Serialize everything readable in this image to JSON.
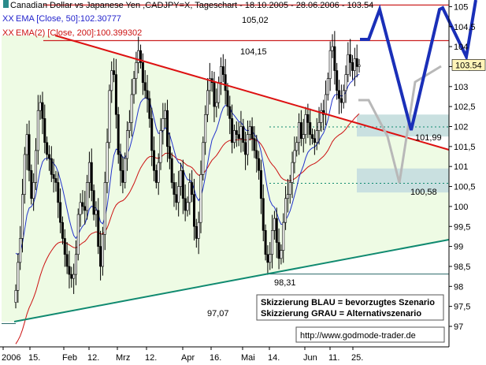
{
  "header": {
    "prefix": "XX",
    "title": "Canadian Dollar vs Japanese Yen ,CADJPY=X, Tageschart - 18.10.2005 - 28.06.2006 - 103.54"
  },
  "legend": [
    {
      "prefix": "XX",
      "label": "EMA [Close, 50]:102.30777",
      "color": "#2222cc"
    },
    {
      "prefix": "XX",
      "label": "EMA(2) [Close, 200]:100.399302",
      "color": "#cc1111"
    }
  ],
  "colors": {
    "candles": "#000000",
    "ema50": "#2233cc",
    "ema200": "#cc1111",
    "trendline_upper": "#dd1111",
    "trendline_lower": "#108a70",
    "resistance": "#cc2222",
    "triangle_fill": "#eefbe4",
    "scenario_blue": "#1a2fb8",
    "scenario_gray": "#b8b8b8",
    "target_zone": "#c9e0e0",
    "price_marker": "#fff4b8"
  },
  "chart_data": {
    "type": "candlestick",
    "title": "Canadian Dollar vs Japanese Yen ,CADJPY=X, Tageschart - 18.10.2005 - 28.06.2006 - 103.54",
    "ylim": [
      96.85,
      105.45
    ],
    "yticks": [
      "97",
      "97,5",
      "98",
      "98,5",
      "99",
      "99,5",
      "100",
      "100,5",
      "101",
      "101,5",
      "102",
      "102,5",
      "103",
      "103,5",
      "104",
      "104,5",
      "105"
    ],
    "xticks": [
      "2006",
      "15.",
      "Feb",
      "12.",
      "Mrz",
      "12.",
      "Apr",
      "16.",
      "Mai",
      "14.",
      "Jun",
      "11.",
      "25."
    ],
    "grid": false,
    "last_price": "103.54",
    "close": [
      97.9,
      98.6,
      99.2,
      100.3,
      101.3,
      101.8,
      100.9,
      100.2,
      100.6,
      101.4,
      102.4,
      102.6,
      102.2,
      101.6,
      101.3,
      101.2,
      100.8,
      100.7,
      100.6,
      100.1,
      99.6,
      99.2,
      98.8,
      98.5,
      98.3,
      98.2,
      98.3,
      98.8,
      99.8,
      100.1,
      100.0,
      99.9,
      100.6,
      101.1,
      100.4,
      99.8,
      99.9,
      99.0,
      98.5,
      99.3,
      100.6,
      101.6,
      102.9,
      103.4,
      103.3,
      102.3,
      101.3,
      100.9,
      100.6,
      101.2,
      101.9,
      102.1,
      102.8,
      103.2,
      103.6,
      103.9,
      103.6,
      103.1,
      102.9,
      102.7,
      102.2,
      101.4,
      100.9,
      100.6,
      101.1,
      101.9,
      102.2,
      102.4,
      101.5,
      101.2,
      100.6,
      100.3,
      100.1,
      100.5,
      100.9,
      100.2,
      99.9,
      100.1,
      100.6,
      100.3,
      99.5,
      99.2,
      99.6,
      100.8,
      101.6,
      102.3,
      102.9,
      103.2,
      103.1,
      102.5,
      102.6,
      103.1,
      103.5,
      103.3,
      102.9,
      102.5,
      102.2,
      101.6,
      101.9,
      101.8,
      101.7,
      102.0,
      101.6,
      101.3,
      101.8,
      102.0,
      101.7,
      101.4,
      101.2,
      100.9,
      100.2,
      99.4,
      98.8,
      98.6,
      98.8,
      99.4,
      99.7,
      99.1,
      98.7,
      98.9,
      99.6,
      100.2,
      100.3,
      100.6,
      101.1,
      101.4,
      101.6,
      102.1,
      101.7,
      101.8,
      102.3,
      102.1,
      101.8,
      101.7,
      101.6,
      101.9,
      102.1,
      102.4,
      102.3,
      102.8,
      103.2,
      103.9,
      104.0,
      103.4,
      102.9,
      102.7,
      102.6,
      102.9,
      103.3,
      103.8,
      103.6,
      103.4,
      103.7,
      103.5,
      103.54
    ],
    "indicators": [
      {
        "name": "EMA [Close, 50]",
        "last": 102.30777
      },
      {
        "name": "EMA(2) [Close, 200]",
        "last": 100.399302
      }
    ],
    "levels": [
      {
        "label": "105,02",
        "value": 105.02
      },
      {
        "label": "104,15",
        "value": 104.15
      },
      {
        "label": "101,99",
        "value": 101.99
      },
      {
        "label": "100,58",
        "value": 100.58
      },
      {
        "label": "98,31",
        "value": 98.31
      },
      {
        "label": "97,07",
        "value": 97.07
      }
    ],
    "scenarios": [
      {
        "label": "Skizzierung BLAU = bevorzugtes Szenario"
      },
      {
        "label": "Skizzierung GRAU = Alternativszenario"
      }
    ],
    "source": "http://www.godmode-trader.de"
  }
}
